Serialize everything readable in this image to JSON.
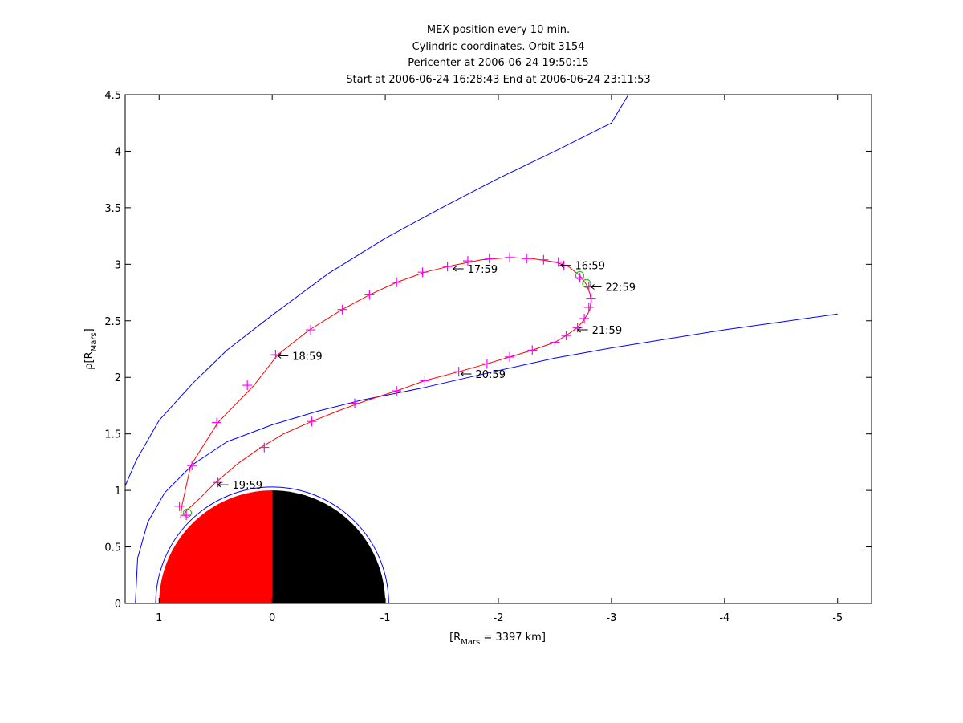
{
  "chart_data": {
    "type": "line",
    "title_lines": [
      "MEX position every 10 min.",
      "Cylindric coordinates. Orbit 3154",
      "Pericenter at 2006-06-24 19:50:15",
      "Start at 2006-06-24 16:28:43 End at 2006-06-24 23:11:53"
    ],
    "xlabel": {
      "pre": "[R",
      "sub": "Mars",
      "post": " = 3397 km]"
    },
    "ylabel": {
      "pre": "ρ[R",
      "sub": "Mars",
      "post": "]"
    },
    "xlim": [
      1.3,
      -5.3
    ],
    "ylim": [
      0,
      4.5
    ],
    "x_ticks": [
      1,
      0,
      -1,
      -2,
      -3,
      -4,
      -5
    ],
    "y_ticks": [
      0,
      0.5,
      1,
      1.5,
      2,
      2.5,
      3,
      3.5,
      4,
      4.5
    ],
    "colors": {
      "orbit": "#ff0000",
      "marker": "#ff00ff",
      "boundary": "#0000ff",
      "endpoint": "#00cc00",
      "dayside": "#ff0000",
      "nightside": "#000000"
    },
    "mars_radius": 1.0,
    "series": [
      {
        "key": "bow_shock",
        "points": [
          [
            1.3,
            1.04
          ],
          [
            1.2,
            1.27
          ],
          [
            1.0,
            1.62
          ],
          [
            0.7,
            1.95
          ],
          [
            0.4,
            2.24
          ],
          [
            0.0,
            2.55
          ],
          [
            -0.5,
            2.92
          ],
          [
            -1.0,
            3.23
          ],
          [
            -1.5,
            3.5
          ],
          [
            -2.0,
            3.76
          ],
          [
            -2.5,
            4.0
          ],
          [
            -3.0,
            4.25
          ],
          [
            -3.15,
            4.5
          ]
        ]
      },
      {
        "key": "mpb",
        "points": [
          [
            1.21,
            0
          ],
          [
            1.19,
            0.4
          ],
          [
            1.1,
            0.72
          ],
          [
            0.95,
            0.98
          ],
          [
            0.7,
            1.23
          ],
          [
            0.4,
            1.43
          ],
          [
            0.0,
            1.58
          ],
          [
            -0.4,
            1.7
          ],
          [
            -0.8,
            1.8
          ],
          [
            -1.3,
            1.9
          ],
          [
            -2.0,
            2.06
          ],
          [
            -2.5,
            2.17
          ],
          [
            -3.0,
            2.26
          ],
          [
            -3.5,
            2.34
          ],
          [
            -4.0,
            2.42
          ],
          [
            -4.5,
            2.49
          ],
          [
            -5.0,
            2.56
          ]
        ]
      },
      {
        "key": "outer_circle",
        "circle_radius": 1.03
      },
      {
        "key": "orbit",
        "points": [
          [
            0.81,
            0.76
          ],
          [
            0.8,
            0.86
          ],
          [
            0.72,
            1.22
          ],
          [
            0.48,
            1.6
          ],
          [
            0.16,
            1.93
          ],
          [
            -0.05,
            2.2
          ],
          [
            -0.33,
            2.42
          ],
          [
            -0.62,
            2.6
          ],
          [
            -0.86,
            2.73
          ],
          [
            -1.1,
            2.84
          ],
          [
            -1.35,
            2.93
          ],
          [
            -1.6,
            2.99
          ],
          [
            -1.85,
            3.04
          ],
          [
            -2.1,
            3.06
          ],
          [
            -2.3,
            3.05
          ],
          [
            -2.5,
            3.02
          ],
          [
            -2.62,
            2.98
          ],
          [
            -2.72,
            2.9
          ],
          [
            -2.78,
            2.82
          ],
          [
            -2.81,
            2.74
          ],
          [
            -2.82,
            2.68
          ],
          [
            -2.81,
            2.6
          ],
          [
            -2.79,
            2.56
          ],
          [
            -2.75,
            2.5
          ],
          [
            -2.7,
            2.44
          ],
          [
            -2.6,
            2.37
          ],
          [
            -2.5,
            2.31
          ],
          [
            -2.3,
            2.24
          ],
          [
            -2.1,
            2.18
          ],
          [
            -1.9,
            2.12
          ],
          [
            -1.65,
            2.05
          ],
          [
            -1.35,
            1.97
          ],
          [
            -1.1,
            1.88
          ],
          [
            -0.85,
            1.8
          ],
          [
            -0.6,
            1.71
          ],
          [
            -0.35,
            1.61
          ],
          [
            -0.1,
            1.5
          ],
          [
            0.1,
            1.38
          ],
          [
            0.3,
            1.24
          ],
          [
            0.5,
            1.07
          ],
          [
            0.65,
            0.92
          ],
          [
            0.75,
            0.83
          ],
          [
            0.78,
            0.79
          ]
        ]
      },
      {
        "key": "markers_10min",
        "points": [
          [
            -2.58,
            2.99
          ],
          [
            -2.72,
            2.88
          ],
          [
            -2.8,
            2.8
          ],
          [
            -2.82,
            2.7
          ],
          [
            -2.8,
            2.62
          ],
          [
            -2.76,
            2.52
          ],
          [
            -2.7,
            2.44
          ],
          [
            -2.6,
            2.37
          ],
          [
            -2.5,
            2.31
          ],
          [
            -2.3,
            2.24
          ],
          [
            -2.1,
            2.18
          ],
          [
            -1.9,
            2.12
          ],
          [
            -1.65,
            2.05
          ],
          [
            -1.35,
            1.97
          ],
          [
            -1.1,
            1.88
          ],
          [
            -0.73,
            1.77
          ],
          [
            -0.35,
            1.61
          ],
          [
            0.07,
            1.38
          ],
          [
            0.48,
            1.07
          ],
          [
            0.76,
            0.78
          ],
          [
            0.82,
            0.86
          ],
          [
            0.71,
            1.22
          ],
          [
            0.49,
            1.6
          ],
          [
            0.22,
            1.93
          ],
          [
            -0.03,
            2.2
          ],
          [
            -0.34,
            2.42
          ],
          [
            -0.62,
            2.6
          ],
          [
            -0.86,
            2.73
          ],
          [
            -1.1,
            2.84
          ],
          [
            -1.33,
            2.93
          ],
          [
            -1.55,
            2.98
          ],
          [
            -1.73,
            3.03
          ],
          [
            -1.92,
            3.05
          ],
          [
            -2.1,
            3.06
          ],
          [
            -2.25,
            3.05
          ],
          [
            -2.4,
            3.04
          ],
          [
            -2.53,
            3.02
          ]
        ]
      },
      {
        "key": "endpoints",
        "points": [
          [
            0.75,
            0.8
          ],
          [
            -2.72,
            2.9
          ],
          [
            -2.78,
            2.83
          ]
        ]
      }
    ],
    "annotations": [
      {
        "text": "16:59",
        "x": -2.55,
        "y": 2.99
      },
      {
        "text": "17:59",
        "x": -1.6,
        "y": 2.96
      },
      {
        "text": "18:59",
        "x": -0.05,
        "y": 2.19
      },
      {
        "text": "19:59",
        "x": 0.48,
        "y": 1.05
      },
      {
        "text": "20:59",
        "x": -1.67,
        "y": 2.03
      },
      {
        "text": "21:59",
        "x": -2.7,
        "y": 2.42
      },
      {
        "text": "22:59",
        "x": -2.82,
        "y": 2.8
      }
    ]
  }
}
